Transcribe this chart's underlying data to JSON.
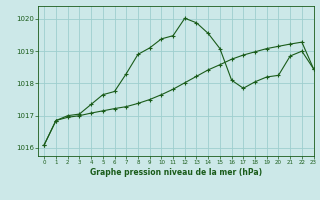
{
  "title": "Graphe pression niveau de la mer (hPa)",
  "bg_color": "#cce8e8",
  "grid_color": "#9ecece",
  "line_color": "#1a5c1a",
  "xlim": [
    -0.5,
    23
  ],
  "ylim": [
    1015.75,
    1020.4
  ],
  "yticks": [
    1016,
    1017,
    1018,
    1019,
    1020
  ],
  "xticks": [
    0,
    1,
    2,
    3,
    4,
    5,
    6,
    7,
    8,
    9,
    10,
    11,
    12,
    13,
    14,
    15,
    16,
    17,
    18,
    19,
    20,
    21,
    22,
    23
  ],
  "series1_x": [
    0,
    1,
    2,
    3,
    4,
    5,
    6,
    7,
    8,
    9,
    10,
    11,
    12,
    13,
    14,
    15,
    16,
    17,
    18,
    19,
    20,
    21,
    22,
    23
  ],
  "series1_y": [
    1016.1,
    1016.85,
    1016.95,
    1017.0,
    1017.08,
    1017.15,
    1017.22,
    1017.28,
    1017.38,
    1017.5,
    1017.65,
    1017.82,
    1018.02,
    1018.22,
    1018.42,
    1018.58,
    1018.75,
    1018.88,
    1018.98,
    1019.08,
    1019.15,
    1019.22,
    1019.28,
    1018.45
  ],
  "series2_x": [
    0,
    1,
    2,
    3,
    4,
    5,
    6,
    7,
    8,
    9,
    10,
    11,
    12,
    13,
    14,
    15,
    16,
    17,
    18,
    19,
    20,
    21,
    22,
    23
  ],
  "series2_y": [
    1016.1,
    1016.85,
    1017.0,
    1017.05,
    1017.35,
    1017.65,
    1017.75,
    1018.3,
    1018.9,
    1019.1,
    1019.38,
    1019.48,
    1020.02,
    1019.88,
    1019.55,
    1019.08,
    1018.1,
    1017.85,
    1018.05,
    1018.2,
    1018.25,
    1018.85,
    1019.0,
    1018.45
  ]
}
